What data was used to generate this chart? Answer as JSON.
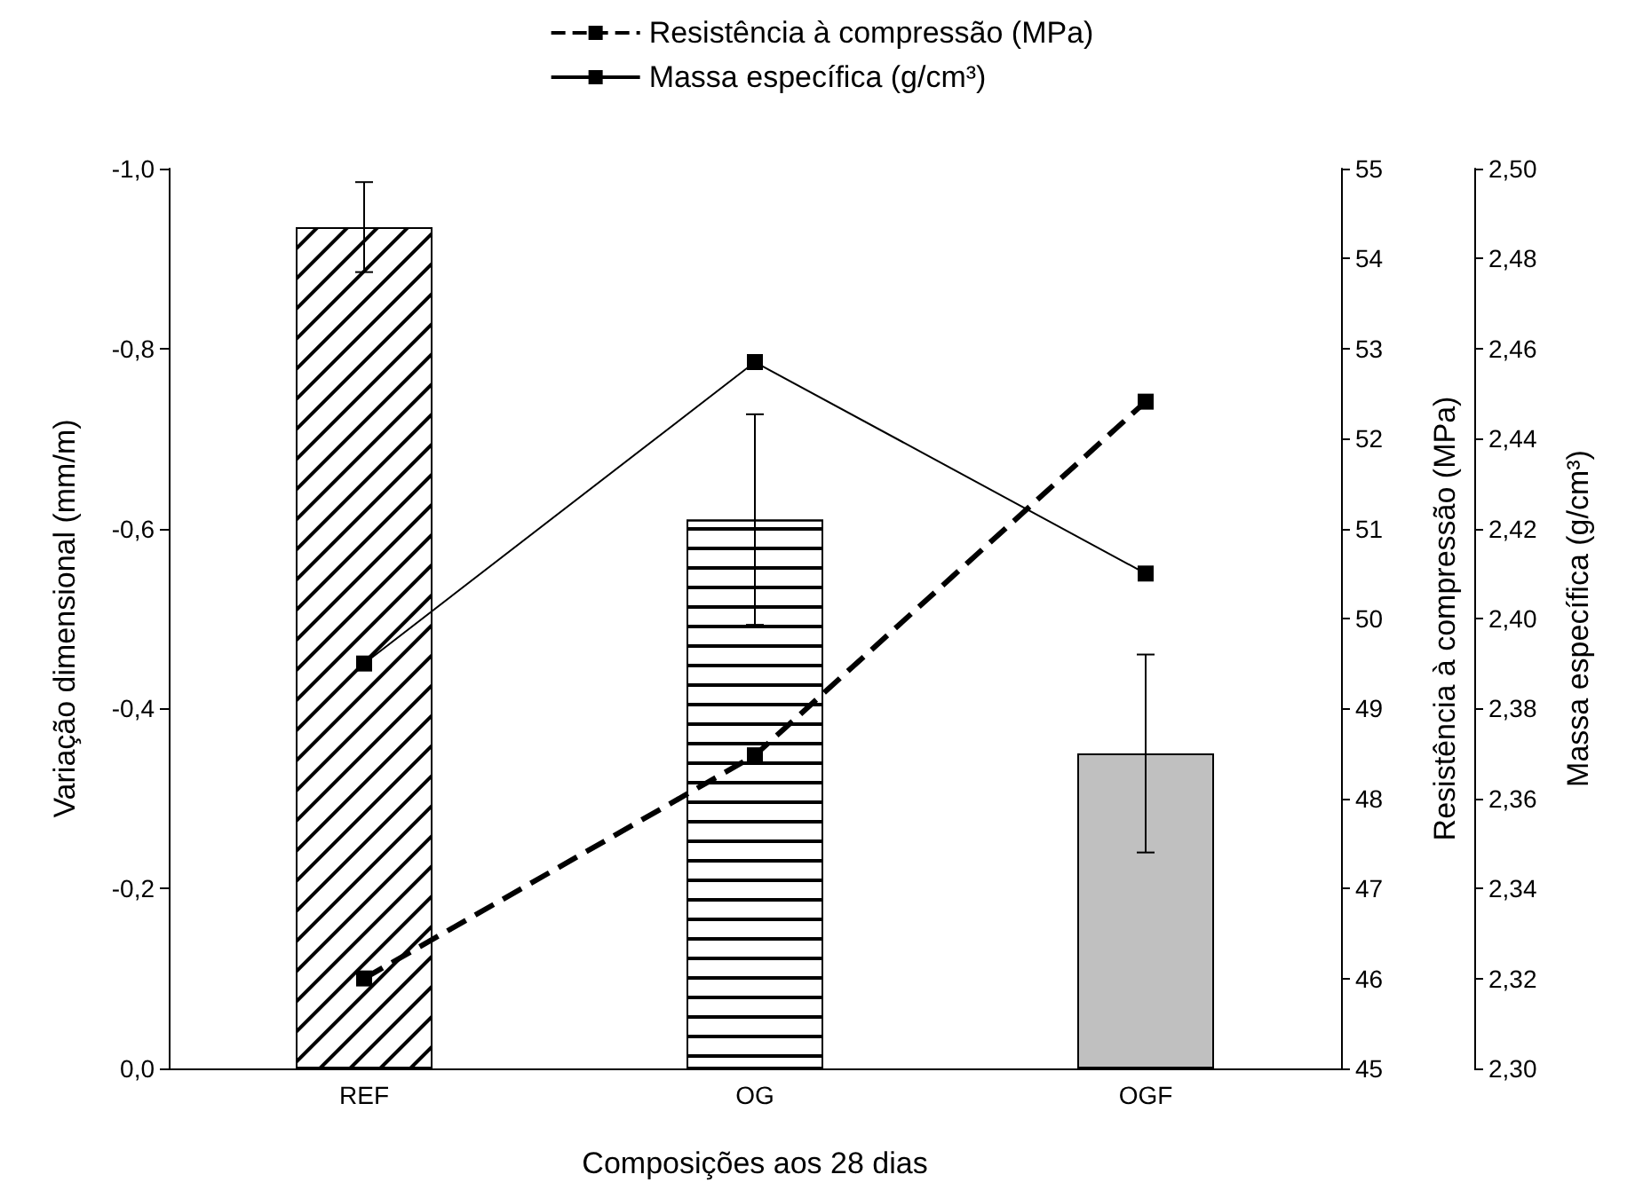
{
  "chart_data": {
    "type": "bar",
    "xlabel": "Composições aos 28 dias",
    "ylabel": "Variação dimensional (mm/m)",
    "y2label": "Resistência à compressão (MPa)",
    "y3label": "Massa específica (g/cm³)",
    "categories": [
      "REF",
      "OG",
      "OGF"
    ],
    "ylim": [
      0,
      -1.0
    ],
    "yticks": [
      {
        "value": 0,
        "label": "0,0"
      },
      {
        "value": -0.2,
        "label": "-0,2"
      },
      {
        "value": -0.4,
        "label": "-0,4"
      },
      {
        "value": -0.6,
        "label": "-0,6"
      },
      {
        "value": -0.8,
        "label": "-0,8"
      },
      {
        "value": -1.0,
        "label": "-1,0"
      }
    ],
    "y2lim": [
      45,
      55
    ],
    "y2ticks": [
      45,
      46,
      47,
      48,
      49,
      50,
      51,
      52,
      53,
      54,
      55
    ],
    "y3lim": [
      2.3,
      2.5
    ],
    "y3ticks": [
      {
        "value": 2.3,
        "label": "2,30"
      },
      {
        "value": 2.32,
        "label": "2,32"
      },
      {
        "value": 2.34,
        "label": "2,34"
      },
      {
        "value": 2.36,
        "label": "2,36"
      },
      {
        "value": 2.38,
        "label": "2,38"
      },
      {
        "value": 2.4,
        "label": "2,40"
      },
      {
        "value": 2.42,
        "label": "2,42"
      },
      {
        "value": 2.44,
        "label": "2,44"
      },
      {
        "value": 2.46,
        "label": "2,46"
      },
      {
        "value": 2.48,
        "label": "2,48"
      },
      {
        "value": 2.5,
        "label": "2,50"
      }
    ],
    "legend": "top",
    "marker": "square",
    "grid": false,
    "series": [
      {
        "colors": [
          "#ffffff",
          "#ffffff",
          "#c0c0c0"
        ],
        "values": [
          -0.935,
          -0.61,
          -0.35
        ],
        "errors": [
          0.05,
          0.117,
          0.11
        ]
      },
      {
        "type": "line",
        "name": "Resistência à compressão (MPa)",
        "axis": "y2",
        "color": "#000000",
        "line_style": "dashed",
        "values": [
          46.0,
          48.48,
          52.41
        ]
      },
      {
        "type": "line",
        "name": "Massa específica (g/cm³)",
        "axis": "y3",
        "color": "#000000",
        "line_style": "solid",
        "values": [
          2.39,
          2.457,
          2.41
        ]
      }
    ]
  }
}
